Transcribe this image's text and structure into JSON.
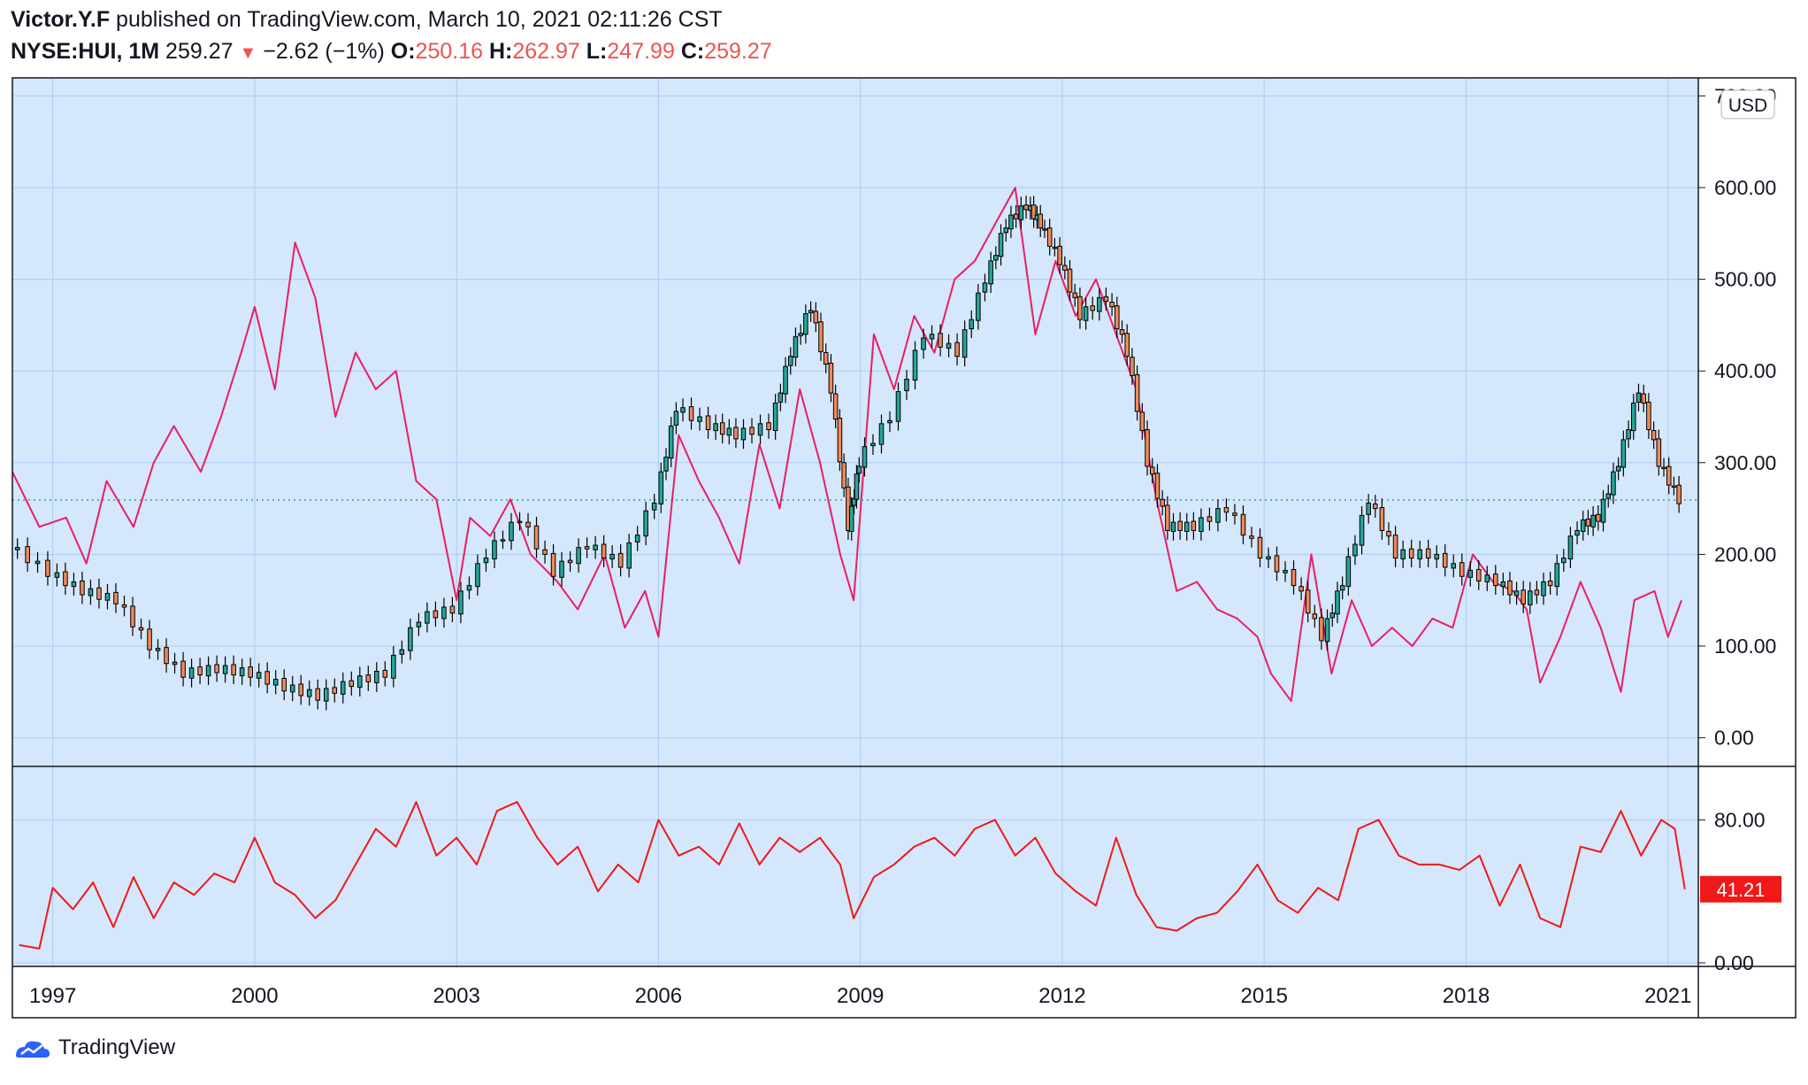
{
  "header": {
    "author": "Victor.Y.F",
    "published": "published on TradingView.com, March 10, 2021 02:11:26 CST",
    "symbol": "NYSE:HUI, 1M",
    "last": "259.27",
    "change": "−2.62 (−1%)",
    "o_label": "O:",
    "o_value": "250.16",
    "h_label": "H:",
    "h_value": "262.97",
    "l_label": "L:",
    "l_value": "247.99",
    "c_label": "C:",
    "c_value": "259.27"
  },
  "footer": {
    "brand": "TradingView"
  },
  "currency_label": "USD",
  "colors": {
    "background": "#d4e7fc",
    "grid": "#a9cdf3",
    "up": "#26a69a",
    "down": "#ef8a5a",
    "overlay": "#e91e63",
    "rsi": "#f01818",
    "badge": "#f01818"
  },
  "chart_data": [
    {
      "type": "candlestick",
      "title": "",
      "x_ticks": [
        "1997",
        "2000",
        "2003",
        "2006",
        "2009",
        "2012",
        "2015",
        "2018",
        "2021"
      ],
      "y_ticks": [
        "0.00",
        "100.00",
        "200.00",
        "300.00",
        "400.00",
        "500.00",
        "600.00",
        "700.00"
      ],
      "ylim": [
        -10,
        710
      ],
      "xlim": [
        1996.4,
        2021.45
      ],
      "last_price": 259.27,
      "grid": true,
      "series": [
        {
          "name": "NYSE:HUI",
          "x": [
            1996.4,
            1997.0,
            1997.5,
            1998.0,
            1998.5,
            1999.0,
            1999.5,
            2000.0,
            2000.5,
            2001.0,
            2001.5,
            2002.0,
            2002.5,
            2003.0,
            2003.5,
            2004.0,
            2004.5,
            2005.0,
            2005.5,
            2006.0,
            2006.3,
            2006.8,
            2007.2,
            2007.7,
            2008.0,
            2008.3,
            2008.6,
            2008.85,
            2009.0,
            2009.5,
            2010.0,
            2010.5,
            2010.9,
            2011.2,
            2011.5,
            2011.7,
            2012.0,
            2012.3,
            2012.7,
            2013.0,
            2013.3,
            2013.6,
            2014.0,
            2014.5,
            2015.0,
            2015.5,
            2015.9,
            2016.2,
            2016.6,
            2017.0,
            2017.5,
            2018.0,
            2018.5,
            2018.9,
            2019.3,
            2019.7,
            2020.0,
            2020.3,
            2020.6,
            2020.9,
            2021.2
          ],
          "values": [
            210,
            180,
            160,
            150,
            100,
            70,
            75,
            70,
            55,
            45,
            60,
            70,
            130,
            140,
            200,
            240,
            180,
            210,
            190,
            260,
            360,
            340,
            330,
            340,
            420,
            470,
            380,
            230,
            300,
            350,
            440,
            420,
            500,
            560,
            580,
            560,
            520,
            460,
            480,
            420,
            300,
            230,
            230,
            250,
            200,
            170,
            110,
            170,
            260,
            200,
            200,
            180,
            170,
            150,
            170,
            230,
            240,
            300,
            380,
            300,
            259.27
          ]
        }
      ]
    },
    {
      "type": "line",
      "title": "",
      "overlay_of": "NYSE:HUI",
      "series": [
        {
          "name": "",
          "x": [
            1996.4,
            1996.8,
            1997.2,
            1997.5,
            1997.8,
            1998.2,
            1998.5,
            1998.8,
            1999.2,
            1999.5,
            1999.8,
            2000.0,
            2000.3,
            2000.6,
            2000.9,
            2001.2,
            2001.5,
            2001.8,
            2002.1,
            2002.4,
            2002.7,
            2003.0,
            2003.2,
            2003.5,
            2003.8,
            2004.1,
            2004.5,
            2004.8,
            2005.2,
            2005.5,
            2005.8,
            2006.0,
            2006.3,
            2006.6,
            2006.9,
            2007.2,
            2007.5,
            2007.8,
            2008.1,
            2008.4,
            2008.7,
            2008.9,
            2009.2,
            2009.5,
            2009.8,
            2010.1,
            2010.4,
            2010.7,
            2011.0,
            2011.3,
            2011.6,
            2011.9,
            2012.2,
            2012.5,
            2012.8,
            2013.1,
            2013.4,
            2013.7,
            2014.0,
            2014.3,
            2014.6,
            2014.9,
            2015.1,
            2015.4,
            2015.7,
            2016.0,
            2016.3,
            2016.6,
            2016.9,
            2017.2,
            2017.5,
            2017.8,
            2018.1,
            2018.4,
            2018.7,
            2018.9,
            2019.1,
            2019.4,
            2019.7,
            2020.0,
            2020.3,
            2020.5,
            2020.8,
            2021.0,
            2021.2
          ],
          "values": [
            290,
            230,
            240,
            190,
            280,
            230,
            300,
            340,
            290,
            350,
            420,
            470,
            380,
            540,
            480,
            350,
            420,
            380,
            400,
            280,
            260,
            150,
            240,
            220,
            260,
            200,
            170,
            140,
            200,
            120,
            160,
            110,
            330,
            280,
            240,
            190,
            320,
            250,
            380,
            300,
            200,
            150,
            440,
            380,
            460,
            420,
            500,
            520,
            560,
            600,
            440,
            520,
            460,
            500,
            440,
            380,
            260,
            160,
            170,
            140,
            130,
            110,
            70,
            40,
            200,
            70,
            150,
            100,
            120,
            100,
            130,
            120,
            200,
            170,
            160,
            140,
            60,
            110,
            170,
            120,
            50,
            150,
            160,
            110,
            150
          ]
        }
      ]
    },
    {
      "type": "line",
      "title": "",
      "y_ticks": [
        "0.00",
        "80.00"
      ],
      "ylim": [
        0,
        100
      ],
      "last_value": 41.21,
      "last_label": "41.21",
      "series": [
        {
          "name": "",
          "x": [
            1996.5,
            1996.8,
            1997.0,
            1997.3,
            1997.6,
            1997.9,
            1998.2,
            1998.5,
            1998.8,
            1999.1,
            1999.4,
            1999.7,
            2000.0,
            2000.3,
            2000.6,
            2000.9,
            2001.2,
            2001.5,
            2001.8,
            2002.1,
            2002.4,
            2002.7,
            2003.0,
            2003.3,
            2003.6,
            2003.9,
            2004.2,
            2004.5,
            2004.8,
            2005.1,
            2005.4,
            2005.7,
            2006.0,
            2006.3,
            2006.6,
            2006.9,
            2007.2,
            2007.5,
            2007.8,
            2008.1,
            2008.4,
            2008.7,
            2008.9,
            2009.2,
            2009.5,
            2009.8,
            2010.1,
            2010.4,
            2010.7,
            2011.0,
            2011.3,
            2011.6,
            2011.9,
            2012.2,
            2012.5,
            2012.8,
            2013.1,
            2013.4,
            2013.7,
            2014.0,
            2014.3,
            2014.6,
            2014.9,
            2015.2,
            2015.5,
            2015.8,
            2016.1,
            2016.4,
            2016.7,
            2017.0,
            2017.3,
            2017.6,
            2017.9,
            2018.2,
            2018.5,
            2018.8,
            2019.1,
            2019.4,
            2019.7,
            2020.0,
            2020.3,
            2020.6,
            2020.9,
            2021.1,
            2021.25
          ],
          "values": [
            10,
            8,
            42,
            30,
            45,
            20,
            48,
            25,
            45,
            38,
            50,
            45,
            70,
            45,
            38,
            25,
            35,
            55,
            75,
            65,
            90,
            60,
            70,
            55,
            85,
            90,
            70,
            55,
            65,
            40,
            55,
            45,
            80,
            60,
            65,
            55,
            78,
            55,
            70,
            62,
            70,
            55,
            25,
            48,
            55,
            65,
            70,
            60,
            75,
            80,
            60,
            70,
            50,
            40,
            32,
            70,
            38,
            20,
            18,
            25,
            28,
            40,
            55,
            35,
            28,
            42,
            35,
            75,
            80,
            60,
            55,
            55,
            52,
            60,
            32,
            55,
            25,
            20,
            65,
            62,
            85,
            60,
            80,
            75,
            41.21
          ]
        }
      ]
    }
  ]
}
